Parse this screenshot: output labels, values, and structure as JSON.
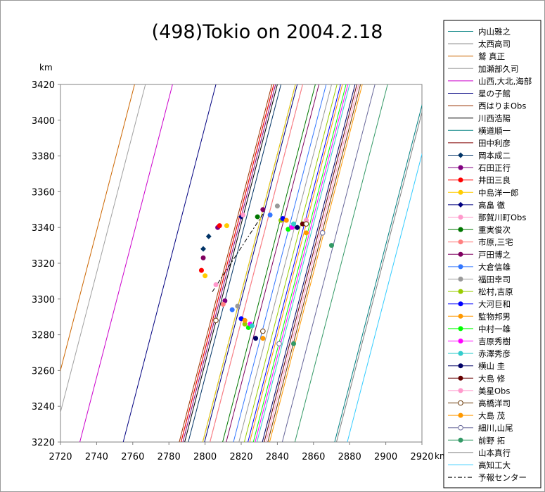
{
  "chart_data": {
    "type": "line",
    "title": "(498)Tokio on 2004.2.18",
    "ylabel": "km",
    "xlabel": "km",
    "xlim": [
      2720,
      2920
    ],
    "ylim": [
      3220,
      3420
    ],
    "xticks": [
      2720,
      2740,
      2760,
      2780,
      2800,
      2820,
      2840,
      2860,
      2880,
      2900,
      2920
    ],
    "yticks": [
      3220,
      3240,
      3260,
      3280,
      3300,
      3320,
      3340,
      3360,
      3380,
      3400,
      3420
    ],
    "grid": false,
    "legend_position": "right",
    "chord_slope": 3.9,
    "series": [
      {
        "name": "内山雅之",
        "color": "#008080",
        "marker": "none",
        "x_ref": 2923
      },
      {
        "name": "太西高司",
        "color": "#808080",
        "marker": "none",
        "x_ref": 2854
      },
      {
        "name": "鷲 真正",
        "color": "#cc6600",
        "marker": "none",
        "x_ref": 2761
      },
      {
        "name": "加瀬部久司",
        "color": "#a0a0a0",
        "marker": "none",
        "x_ref": 2767
      },
      {
        "name": "山西,大北,海部",
        "color": "#cc00cc",
        "marker": "none",
        "x_ref": 2782
      },
      {
        "name": "星の子館",
        "color": "#000080",
        "marker": "none",
        "x_ref": 2806
      },
      {
        "name": "西はりまObs",
        "color": "#993300",
        "marker": "none",
        "x_ref": 2837
      },
      {
        "name": "川西浩陽",
        "color": "#000000",
        "marker": "none",
        "x_ref": 2840
      },
      {
        "name": "横道順一",
        "color": "#008080",
        "marker": "none",
        "x_ref": 2850
      },
      {
        "name": "田中利彦",
        "color": "#800000",
        "marker": "none",
        "x_ref": 2838
      },
      {
        "name": "岡本成二",
        "color": "#003366",
        "marker": "diamond",
        "x_ref": 2842,
        "points": [
          [
            2802,
            3335
          ],
          [
            2799,
            3328
          ]
        ]
      },
      {
        "name": "石田正行",
        "color": "#800080",
        "marker": "circle",
        "x_ref": 2839,
        "points": [
          [
            2807,
            3340
          ],
          [
            2811,
            3299
          ]
        ]
      },
      {
        "name": "井田三良",
        "color": "#ff0000",
        "marker": "circle",
        "x_ref": 2838,
        "points": [
          [
            2808,
            3341
          ],
          [
            2798,
            3316
          ]
        ]
      },
      {
        "name": "中島洋一郎",
        "color": "#ffcc00",
        "marker": "circle",
        "x_ref": 2850,
        "points": [
          [
            2812,
            3341
          ],
          [
            2800,
            3313
          ]
        ]
      },
      {
        "name": "高畠 徹",
        "color": "#000080",
        "marker": "diamond",
        "x_ref": 2851,
        "points": [
          [
            2820,
            3346
          ],
          [
            2851,
            3340
          ]
        ]
      },
      {
        "name": "那賀川町Obs",
        "color": "#ff99cc",
        "marker": "circle",
        "x_ref": 2854,
        "points": [
          [
            2821,
            3347
          ],
          [
            2806,
            3308
          ]
        ]
      },
      {
        "name": "重実俊次",
        "color": "#007700",
        "marker": "circle",
        "x_ref": 2861,
        "points": [
          [
            2829,
            3346
          ]
        ]
      },
      {
        "name": "市原,三宅",
        "color": "#ff8080",
        "marker": "circle",
        "x_ref": 2854,
        "points": [
          [
            2810,
            3297
          ]
        ]
      },
      {
        "name": "戸田博之",
        "color": "#800060",
        "marker": "circle",
        "x_ref": 2863,
        "points": [
          [
            2832,
            3350
          ],
          [
            2799,
            3323
          ]
        ]
      },
      {
        "name": "大倉信雄",
        "color": "#3377ff",
        "marker": "circle",
        "x_ref": 2867,
        "points": [
          [
            2836,
            3347
          ],
          [
            2815,
            3294
          ]
        ]
      },
      {
        "name": "福田幸司",
        "color": "#999999",
        "marker": "circle",
        "x_ref": 2870,
        "points": [
          [
            2840,
            3352
          ],
          [
            2818,
            3296
          ]
        ]
      },
      {
        "name": "松村,吉原",
        "color": "#99cc00",
        "marker": "circle",
        "x_ref": 2873,
        "points": [
          [
            2842,
            3344
          ],
          [
            2822,
            3286
          ]
        ]
      },
      {
        "name": "大河巨和",
        "color": "#0000ff",
        "marker": "circle",
        "x_ref": 2875,
        "points": [
          [
            2843,
            3345
          ],
          [
            2820,
            3289
          ]
        ]
      },
      {
        "name": "監物邦男",
        "color": "#ff9900",
        "marker": "circle",
        "x_ref": 2876,
        "points": [
          [
            2845,
            3344
          ],
          [
            2822,
            3288
          ]
        ]
      },
      {
        "name": "中村一雄",
        "color": "#00ff00",
        "marker": "circle",
        "x_ref": 2878,
        "points": [
          [
            2846,
            3339
          ],
          [
            2824,
            3284
          ]
        ]
      },
      {
        "name": "吉原秀樹",
        "color": "#ff00ff",
        "marker": "circle",
        "x_ref": 2879,
        "points": [
          [
            2848,
            3340
          ],
          [
            2825,
            3286
          ]
        ]
      },
      {
        "name": "赤澤秀彦",
        "color": "#33cccc",
        "marker": "circle",
        "x_ref": 2880,
        "points": [
          [
            2849,
            3342
          ],
          [
            2826,
            3285
          ]
        ]
      },
      {
        "name": "横山 圭",
        "color": "#000066",
        "marker": "circle",
        "x_ref": 2883,
        "points": [
          [
            2851,
            3340
          ],
          [
            2828,
            3278
          ]
        ]
      },
      {
        "name": "大島 修",
        "color": "#660000",
        "marker": "circle",
        "x_ref": 2884,
        "points": [
          [
            2854,
            3342
          ]
        ]
      },
      {
        "name": "美星Obs",
        "color": "#ff99cc",
        "marker": "circle",
        "x_ref": 2885,
        "points": [
          [
            2856,
            3344
          ],
          [
            2832,
            3282
          ]
        ]
      },
      {
        "name": "高橋洋司",
        "color": "#663300",
        "marker": "open-circle",
        "x_ref": 2886,
        "points": [
          [
            2806,
            3288
          ],
          [
            2832,
            3282
          ],
          [
            2856,
            3342
          ]
        ]
      },
      {
        "name": "大島 茂",
        "color": "#ff9900",
        "marker": "circle",
        "x_ref": 2887,
        "points": [
          [
            2856,
            3337
          ],
          [
            2832,
            3278
          ]
        ]
      },
      {
        "name": "細川,山尾",
        "color": "#666699",
        "marker": "open-circle",
        "x_ref": 2894,
        "points": [
          [
            2865,
            3337
          ],
          [
            2841,
            3275
          ]
        ]
      },
      {
        "name": "前野 拓",
        "color": "#339966",
        "marker": "circle",
        "x_ref": 2901,
        "points": [
          [
            2870,
            3330
          ],
          [
            2849,
            3275
          ]
        ]
      },
      {
        "name": "山本真行",
        "color": "#808080",
        "marker": "none",
        "x_ref": 2924
      },
      {
        "name": "高知工大",
        "color": "#33ccff",
        "marker": "none",
        "x_ref": 2930
      },
      {
        "name": "予報センター",
        "color": "#000000",
        "marker": "dash",
        "x_ref": 2833
      }
    ]
  }
}
